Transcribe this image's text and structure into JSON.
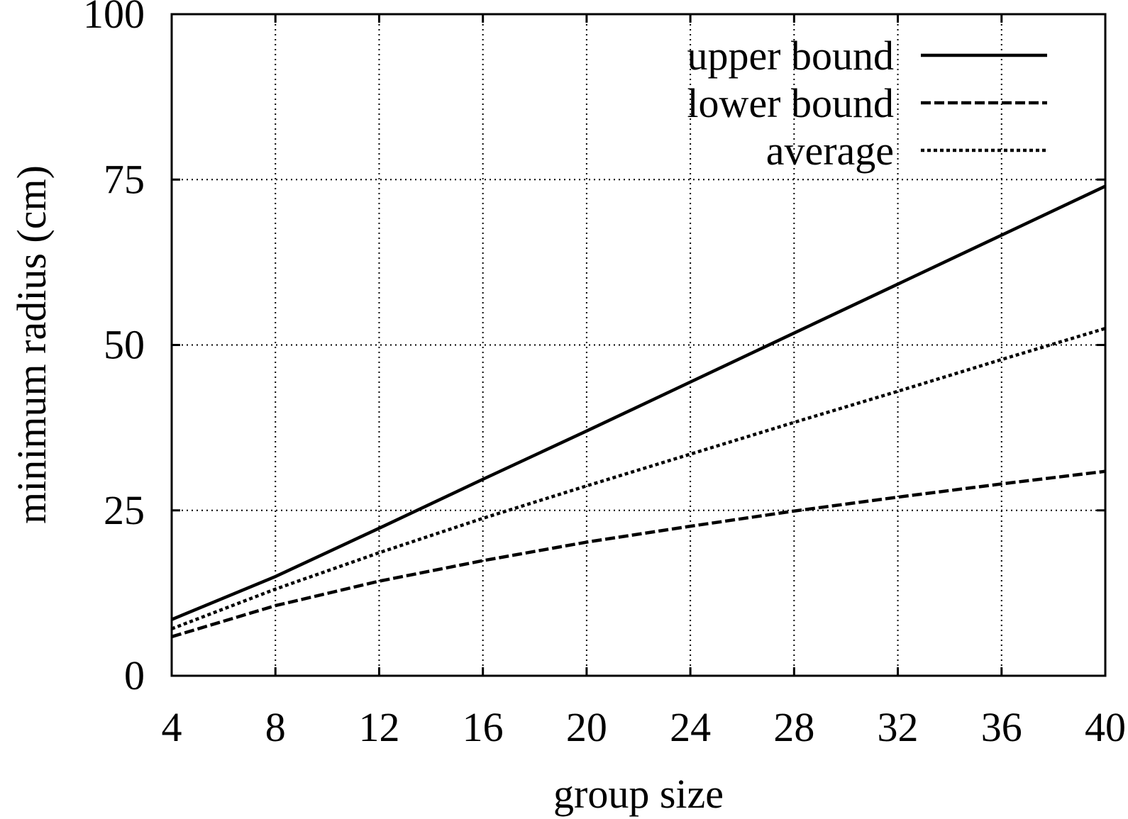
{
  "chart_data": {
    "type": "line",
    "title": "",
    "xlabel": "group size",
    "ylabel": "minimum radius (cm)",
    "xlim": [
      4,
      40
    ],
    "ylim": [
      0,
      100
    ],
    "xticks": [
      4,
      8,
      12,
      16,
      20,
      24,
      28,
      32,
      36,
      40
    ],
    "yticks": [
      0,
      25,
      50,
      75,
      100
    ],
    "grid": true,
    "legend_position": "top-right",
    "x": [
      4,
      8,
      12,
      16,
      20,
      24,
      28,
      32,
      36,
      40
    ],
    "series": [
      {
        "name": "upper bound",
        "style": "solid",
        "color": "#000000",
        "values": [
          8.5,
          15.0,
          22.3,
          29.7,
          37.0,
          44.4,
          51.8,
          59.2,
          66.6,
          74.0
        ]
      },
      {
        "name": "lower bound",
        "style": "dashed",
        "color": "#000000",
        "values": [
          5.9,
          10.6,
          14.3,
          17.4,
          20.2,
          22.6,
          24.9,
          27.0,
          29.0,
          30.9
        ]
      },
      {
        "name": "average",
        "style": "dotted",
        "color": "#000000",
        "values": [
          7.1,
          13.1,
          18.6,
          23.8,
          28.7,
          33.5,
          38.3,
          43.0,
          47.8,
          52.5
        ]
      }
    ]
  }
}
